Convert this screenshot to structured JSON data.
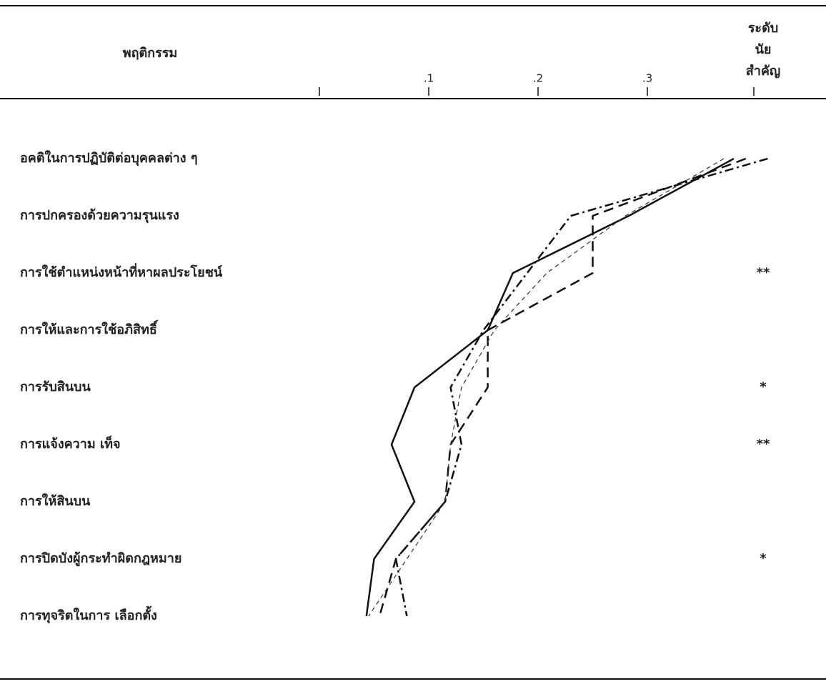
{
  "chart_data": {
    "type": "line",
    "header": "พฤติกรรม",
    "significance_header": [
      "ระดับ",
      "นัย",
      "สำคัญ"
    ],
    "categories": [
      "อคติในการปฏิบัติต่อบุคคลต่าง ๆ",
      "การปกครองด้วยความรุนแรง",
      "การใช้ตำแหน่งหน้าที่หาผลประโยชน์",
      "การให้และการใช้อภิสิทธิ์",
      "การรับสินบน",
      "การแจ้งความ เท็จ",
      "การให้สินบน",
      "การปิดบังผู้กระทำผิดกฎหมาย",
      "การทุจริตในการ เลือกตั้ง"
    ],
    "significance": [
      null,
      null,
      "**",
      null,
      "*",
      "**",
      null,
      "*",
      null
    ],
    "xlim": [
      0,
      0.4
    ],
    "xticks": [
      {
        "value": 0
      },
      {
        "value": 0.1,
        "label": ".1"
      },
      {
        "value": 0.2,
        "label": ".2"
      },
      {
        "value": 0.3,
        "label": ".3"
      }
    ],
    "series": [
      {
        "color": "#111",
        "style": "solid",
        "values": [
          0.379,
          0.283,
          0.177,
          0.154,
          0.087,
          0.066,
          0.087,
          0.05,
          0.043
        ]
      },
      {
        "color": "#111",
        "style": "dashed",
        "values": [
          0.39,
          0.25,
          0.25,
          0.154,
          0.154,
          0.12,
          0.115,
          0.07,
          0.055
        ]
      },
      {
        "color": "#111",
        "style": "dashdot",
        "values": [
          0.41,
          0.23,
          0.19,
          0.15,
          0.12,
          0.13,
          0.115,
          0.07,
          0.08
        ]
      },
      {
        "color": "#333",
        "style": "thin",
        "values": [
          0.37,
          0.28,
          0.208,
          0.16,
          0.13,
          0.12,
          0.115,
          0.08,
          0.045
        ]
      }
    ]
  }
}
